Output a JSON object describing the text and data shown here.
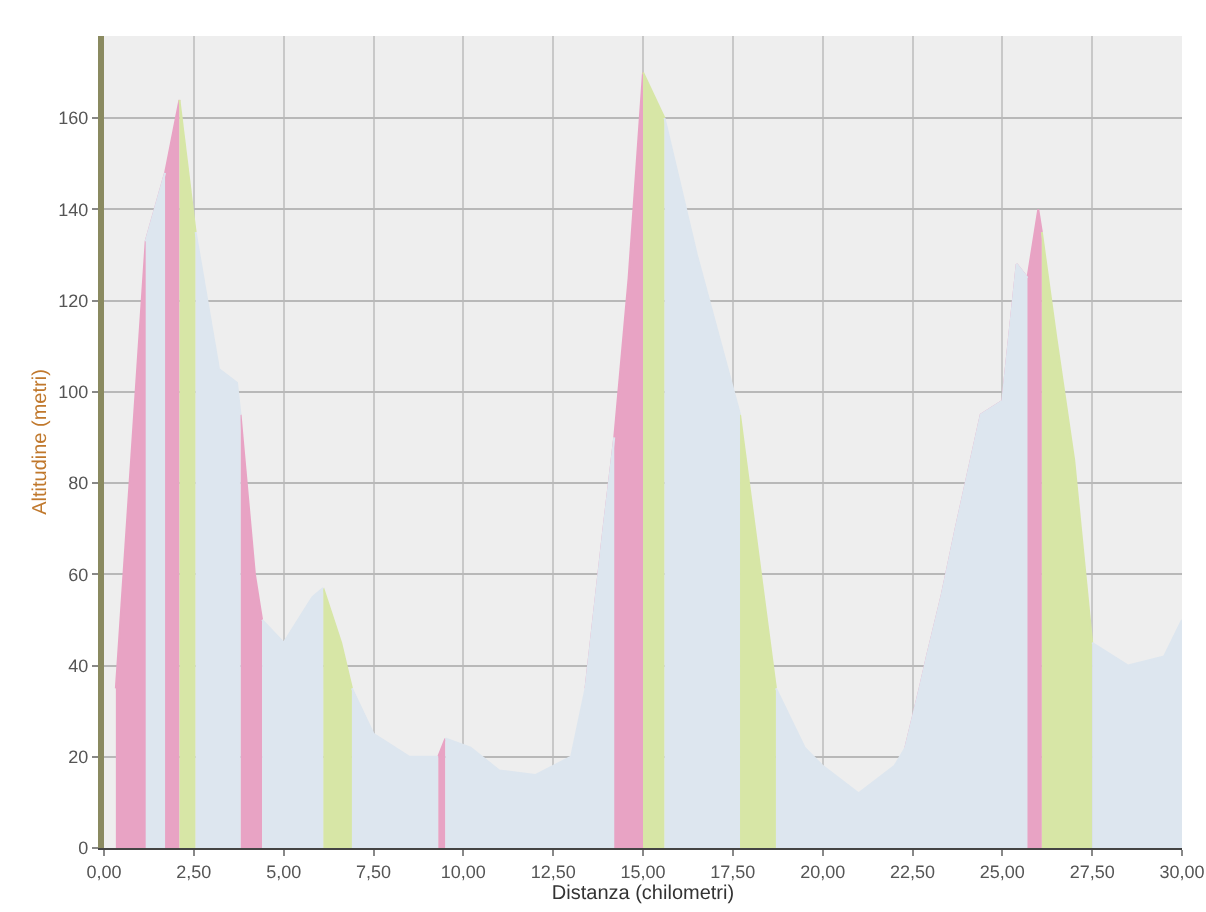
{
  "chart_data": {
    "type": "area",
    "xlabel": "Distanza (chilometri)",
    "ylabel": "Altitudine (metri)",
    "x": [
      0.33,
      1.16,
      1.7,
      2.0,
      2.1,
      2.55,
      3.2,
      3.7,
      3.8,
      4.2,
      4.4,
      5.0,
      5.8,
      6.1,
      6.6,
      6.9,
      7.5,
      8.5,
      9.3,
      9.4,
      9.5,
      10.2,
      11.0,
      12.0,
      13.0,
      13.4,
      13.9,
      14.2,
      14.6,
      15.0,
      15.6,
      16.5,
      17.7,
      18.2,
      18.7,
      19.5,
      20.0,
      21.0,
      22.0,
      22.3,
      22.7,
      22.9,
      23.3,
      23.7,
      24.4,
      25.0,
      25.4,
      25.7,
      26.0,
      26.1,
      26.5,
      27.0,
      27.5,
      28.5,
      29.5,
      30.0
    ],
    "series": [
      {
        "color": "#e8a3c4",
        "values": [
          35,
          133,
          148,
          160,
          164,
          null,
          null,
          null,
          95,
          60,
          50,
          null,
          null,
          null,
          null,
          null,
          null,
          null,
          20,
          22,
          24,
          null,
          null,
          null,
          null,
          35,
          70,
          90,
          125,
          170,
          null,
          null,
          null,
          null,
          null,
          null,
          null,
          null,
          null,
          22,
          35,
          42,
          55,
          70,
          95,
          98,
          128,
          125,
          140,
          135,
          null,
          null,
          null,
          null,
          null,
          null
        ]
      },
      {
        "color": "#d7e6a6",
        "values": [
          null,
          null,
          null,
          null,
          164,
          135,
          null,
          null,
          null,
          null,
          null,
          null,
          null,
          57,
          45,
          35,
          null,
          null,
          null,
          null,
          null,
          null,
          null,
          null,
          null,
          null,
          null,
          null,
          null,
          170,
          160,
          null,
          95,
          65,
          35,
          null,
          null,
          null,
          null,
          null,
          null,
          null,
          null,
          null,
          null,
          null,
          null,
          null,
          null,
          135,
          112,
          85,
          45,
          null,
          null,
          null
        ]
      },
      {
        "color": "#dde6ef",
        "values": [
          null,
          133,
          148,
          null,
          null,
          135,
          105,
          102,
          95,
          null,
          50,
          45,
          55,
          57,
          null,
          35,
          25,
          20,
          20,
          null,
          24,
          22,
          17,
          16,
          20,
          35,
          70,
          90,
          null,
          null,
          160,
          130,
          95,
          null,
          35,
          22,
          18,
          12,
          18,
          22,
          35,
          42,
          55,
          70,
          95,
          98,
          128,
          125,
          null,
          null,
          null,
          null,
          45,
          40,
          42,
          50
        ]
      }
    ],
    "xlim": [
      0,
      30
    ],
    "xticks": [
      {
        "value": 0,
        "label": "0,00"
      },
      {
        "value": 2.5,
        "label": "2,50"
      },
      {
        "value": 5,
        "label": "5,00"
      },
      {
        "value": 7.5,
        "label": "7,50"
      },
      {
        "value": 10,
        "label": "10,00"
      },
      {
        "value": 12.5,
        "label": "12,50"
      },
      {
        "value": 15,
        "label": "15,00"
      },
      {
        "value": 17.5,
        "label": "17,50"
      },
      {
        "value": 20,
        "label": "20,00"
      },
      {
        "value": 22.5,
        "label": "22,50"
      },
      {
        "value": 25,
        "label": "25,00"
      },
      {
        "value": 27.5,
        "label": "27,50"
      },
      {
        "value": 30,
        "label": "30,00"
      }
    ],
    "ylim": [
      0,
      178
    ],
    "yticks": [
      0,
      20,
      40,
      60,
      80,
      100,
      120,
      140,
      160
    ],
    "grid": true
  }
}
